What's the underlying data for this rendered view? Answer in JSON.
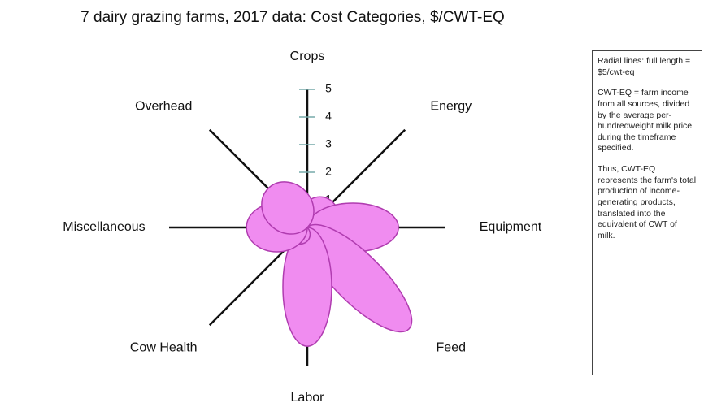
{
  "chart_data": {
    "type": "petal",
    "title": "7 dairy grazing farms, 2017 data: Cost Categories, $/CWT-EQ",
    "categories": [
      "Crops",
      "Energy",
      "Equipment",
      "Feed",
      "Labor",
      "Cow Health",
      "Miscellaneous",
      "Overhead"
    ],
    "values": [
      0.9,
      1.3,
      3.3,
      5.2,
      4.3,
      0.7,
      2.2,
      2.0
    ],
    "color": "#f08cf0",
    "stroke": "#b03cb0",
    "rlim": [
      0,
      5
    ],
    "rticks": [
      1,
      2,
      3,
      4,
      5
    ],
    "note": [
      "Radial lines: full length = $5/cwt-eq",
      "CWT-EQ = farm income from all sources, divided by the average per-hundredweight milk price during the timeframe specified.",
      "Thus, CWT-EQ represents the farm's total production of income-generating products, translated into the equivalent of CWT of milk."
    ]
  }
}
